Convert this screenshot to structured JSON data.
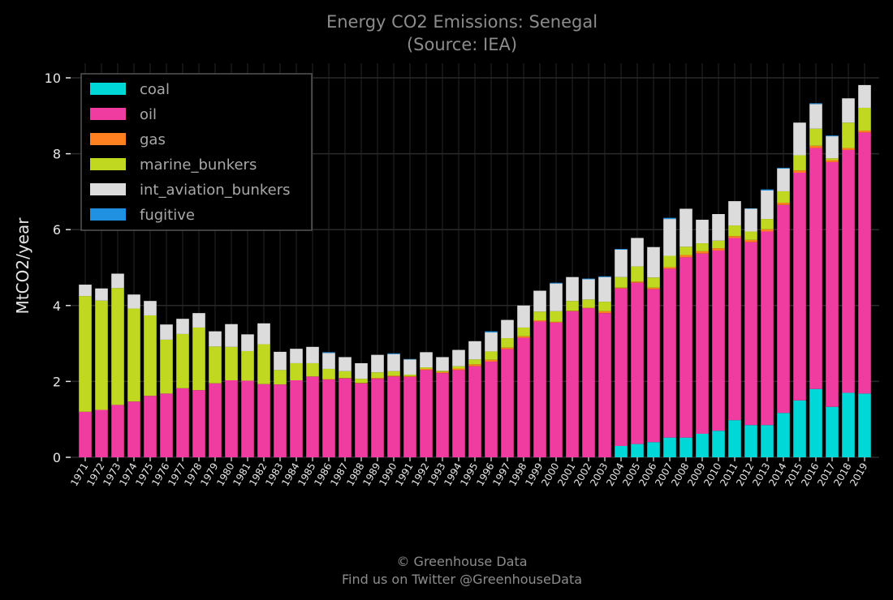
{
  "chart_data": {
    "type": "bar",
    "stacked": true,
    "title": "Energy CO2 Emissions: Senegal",
    "subtitle": "(Source: IEA)",
    "xlabel": "",
    "ylabel": "MtCO2/year",
    "ylim": [
      0,
      10
    ],
    "yticks": [
      0,
      2,
      4,
      6,
      8,
      10
    ],
    "grid": true,
    "legend_position": "top-left",
    "categories": [
      "1971",
      "1972",
      "1973",
      "1974",
      "1975",
      "1976",
      "1977",
      "1978",
      "1979",
      "1980",
      "1981",
      "1982",
      "1983",
      "1984",
      "1985",
      "1986",
      "1987",
      "1988",
      "1989",
      "1990",
      "1991",
      "1992",
      "1993",
      "1994",
      "1995",
      "1996",
      "1997",
      "1998",
      "1999",
      "2000",
      "2001",
      "2002",
      "2003",
      "2004",
      "2005",
      "2006",
      "2007",
      "2008",
      "2009",
      "2010",
      "2011",
      "2012",
      "2013",
      "2014",
      "2015",
      "2016",
      "2017",
      "2018",
      "2019"
    ],
    "series": [
      {
        "name": "coal",
        "color": "#00d8d8",
        "values": [
          0,
          0,
          0,
          0,
          0,
          0,
          0,
          0,
          0,
          0,
          0,
          0,
          0,
          0,
          0,
          0,
          0,
          0,
          0,
          0,
          0,
          0,
          0,
          0,
          0,
          0,
          0,
          0,
          0,
          0,
          0,
          0,
          0,
          0.3,
          0.35,
          0.4,
          0.52,
          0.52,
          0.62,
          0.7,
          0.98,
          0.85,
          0.85,
          1.17,
          1.5,
          1.8,
          1.33,
          1.7,
          1.68
        ]
      },
      {
        "name": "oil",
        "color": "#f03ca0",
        "values": [
          1.2,
          1.25,
          1.38,
          1.47,
          1.62,
          1.68,
          1.82,
          1.77,
          1.95,
          2.03,
          2.02,
          1.93,
          1.92,
          2.03,
          2.13,
          2.05,
          2.08,
          1.95,
          2.07,
          2.13,
          2.12,
          2.3,
          2.22,
          2.3,
          2.4,
          2.52,
          2.85,
          3.15,
          3.58,
          3.55,
          3.85,
          3.93,
          3.8,
          4.15,
          4.25,
          4.03,
          4.45,
          4.75,
          4.75,
          4.75,
          4.8,
          4.82,
          5.1,
          5.48,
          6.0,
          6.35,
          6.45,
          6.4,
          6.88
        ]
      },
      {
        "name": "gas",
        "color": "#ff8020",
        "values": [
          0,
          0,
          0,
          0,
          0,
          0,
          0,
          0,
          0,
          0,
          0,
          0,
          0,
          0,
          0,
          0.01,
          0.01,
          0.01,
          0.02,
          0.02,
          0.02,
          0.03,
          0.03,
          0.04,
          0.05,
          0.05,
          0.04,
          0.04,
          0.03,
          0.02,
          0.01,
          0.01,
          0.05,
          0.02,
          0.03,
          0.04,
          0.04,
          0.06,
          0.06,
          0.06,
          0.05,
          0.06,
          0.06,
          0.06,
          0.06,
          0.06,
          0.05,
          0.05,
          0.05
        ]
      },
      {
        "name": "marine_bunkers",
        "color": "#c0d820",
        "values": [
          3.05,
          2.88,
          3.08,
          2.45,
          2.12,
          1.42,
          1.43,
          1.65,
          0.97,
          0.88,
          0.78,
          1.05,
          0.38,
          0.45,
          0.35,
          0.27,
          0.18,
          0.11,
          0.15,
          0.12,
          0.04,
          0.04,
          0.03,
          0.06,
          0.13,
          0.22,
          0.25,
          0.23,
          0.23,
          0.28,
          0.26,
          0.22,
          0.25,
          0.28,
          0.4,
          0.27,
          0.3,
          0.22,
          0.21,
          0.2,
          0.28,
          0.22,
          0.27,
          0.3,
          0.4,
          0.45,
          0.05,
          0.67,
          0.6
        ]
      },
      {
        "name": "int_aviation_bunkers",
        "color": "#dcdcdc",
        "values": [
          0.3,
          0.32,
          0.38,
          0.37,
          0.38,
          0.4,
          0.4,
          0.38,
          0.4,
          0.6,
          0.44,
          0.55,
          0.48,
          0.38,
          0.43,
          0.42,
          0.37,
          0.41,
          0.46,
          0.45,
          0.4,
          0.4,
          0.36,
          0.43,
          0.48,
          0.5,
          0.48,
          0.58,
          0.55,
          0.73,
          0.63,
          0.53,
          0.65,
          0.72,
          0.75,
          0.8,
          0.97,
          1.0,
          0.62,
          0.7,
          0.64,
          0.6,
          0.75,
          0.6,
          0.86,
          0.65,
          0.58,
          0.64,
          0.6
        ]
      },
      {
        "name": "fugitive",
        "color": "#2090e0",
        "values": [
          0,
          0,
          0,
          0,
          0,
          0,
          0,
          0,
          0,
          0,
          0,
          0,
          0,
          0,
          0,
          0.02,
          0,
          0,
          0,
          0.02,
          0.01,
          0,
          0,
          0,
          0,
          0.03,
          0,
          0,
          0,
          0.02,
          0,
          0.02,
          0.02,
          0.02,
          0,
          0,
          0.03,
          0,
          0,
          0,
          0,
          0.01,
          0.03,
          0.02,
          0,
          0.02,
          0.02,
          0,
          0
        ]
      }
    ]
  },
  "footer": {
    "line1": "© Greenhouse Data",
    "line2": "Find us on Twitter @GreenhouseData"
  }
}
